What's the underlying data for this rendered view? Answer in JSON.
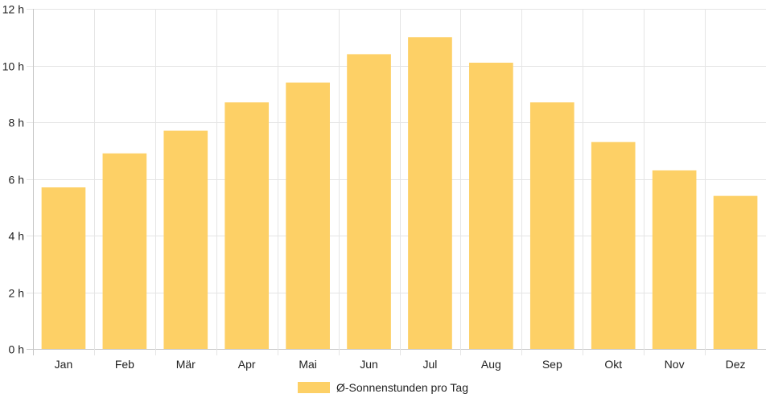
{
  "chart_data": {
    "type": "bar",
    "categories": [
      "Jan",
      "Feb",
      "Mär",
      "Apr",
      "Mai",
      "Jun",
      "Jul",
      "Aug",
      "Sep",
      "Okt",
      "Nov",
      "Dez"
    ],
    "series": [
      {
        "name": "Ø-Sonnenstunden pro Tag",
        "values": [
          5.7,
          6.9,
          7.7,
          8.7,
          9.4,
          10.4,
          11.0,
          10.1,
          8.7,
          7.3,
          6.3,
          5.4
        ]
      }
    ],
    "y_ticks": [
      "0 h",
      "2 h",
      "4 h",
      "6 h",
      "8 h",
      "10 h",
      "12 h"
    ],
    "ylim": [
      0,
      12
    ],
    "grid": true,
    "legend_position": "bottom",
    "bar_color": "#fdd066"
  },
  "legend": {
    "label": "Ø-Sonnenstunden pro Tag"
  }
}
